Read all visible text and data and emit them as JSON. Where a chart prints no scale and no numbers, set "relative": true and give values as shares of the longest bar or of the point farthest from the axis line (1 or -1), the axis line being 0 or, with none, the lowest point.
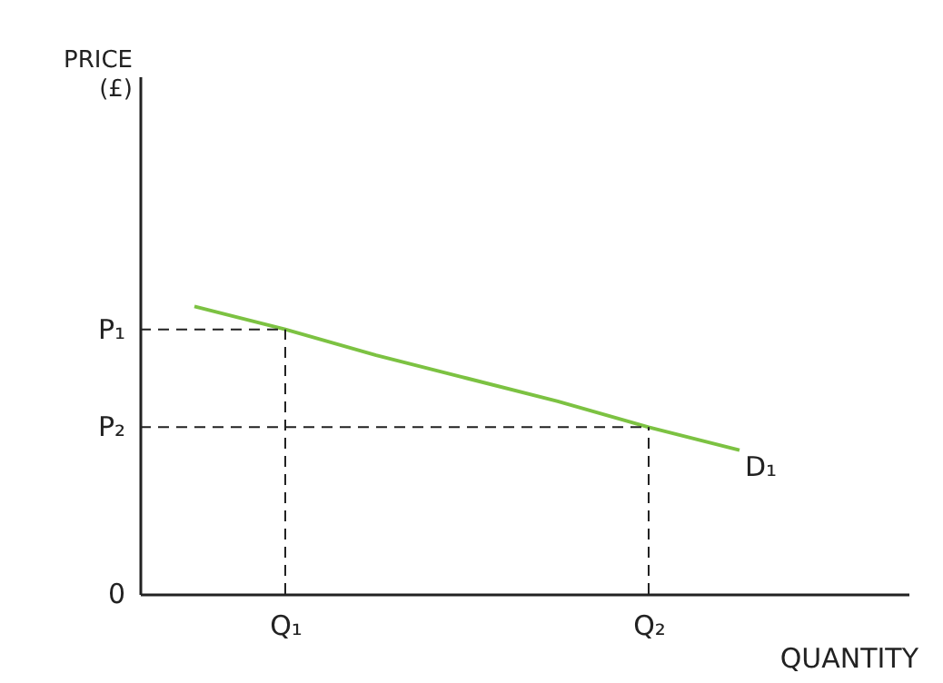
{
  "chart_data": {
    "type": "line",
    "relative": true,
    "xlabel": "QUANTITY",
    "categories": [
      null,
      "Q₁",
      null,
      null,
      null,
      "Q₂",
      null
    ],
    "series": [
      {
        "name": "D₁",
        "color": "#7cc242",
        "values": [
          1.0,
          0.92,
          0.83,
          0.75,
          0.67,
          0.58,
          0.5
        ]
      }
    ],
    "annotations": [
      "PRICE\n(£)",
      "0",
      "P₁",
      "P₂"
    ],
    "legend": false,
    "marker": "none",
    "line_style": "solid"
  }
}
